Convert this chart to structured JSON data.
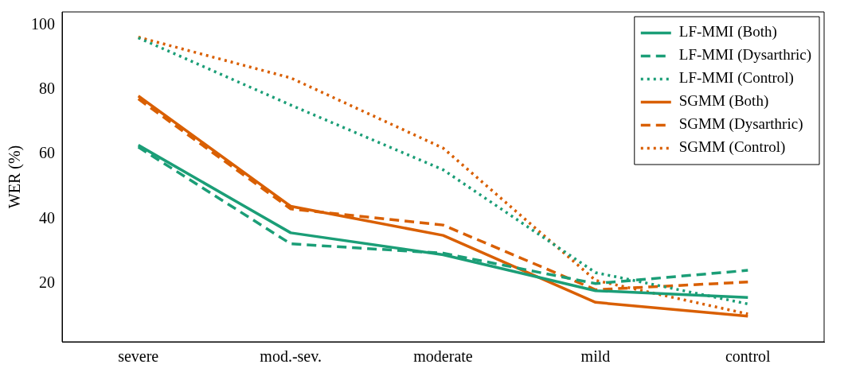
{
  "chart_data": {
    "type": "line",
    "ylabel": "WER (%)",
    "categories": [
      "severe",
      "mod.-sev.",
      "moderate",
      "mild",
      "control"
    ],
    "ylim": [
      2,
      104
    ],
    "yticks": [
      20,
      40,
      60,
      80,
      100
    ],
    "grid": false,
    "legend": "top right",
    "marker": "none",
    "series": [
      {
        "name": "LF-MMI (Both)",
        "color": "#1b9e77",
        "line_style": "solid",
        "values": [
          62.8,
          35.7,
          28.9,
          17.8,
          15.7
        ]
      },
      {
        "name": "LF-MMI (Dysarthric)",
        "color": "#1b9e77",
        "line_style": "dashed",
        "values": [
          62.2,
          32.3,
          29.4,
          20.0,
          24.1
        ]
      },
      {
        "name": "LF-MMI (Control)",
        "color": "#1b9e77",
        "line_style": "dotted",
        "values": [
          96.0,
          75.2,
          55.2,
          23.4,
          13.7
        ]
      },
      {
        "name": "SGMM (Both)",
        "color": "#d95f02",
        "line_style": "solid",
        "values": [
          78.0,
          43.9,
          34.9,
          14.2,
          9.9
        ]
      },
      {
        "name": "SGMM (Dysarthric)",
        "color": "#d95f02",
        "line_style": "dashed",
        "values": [
          77.1,
          43.1,
          38.1,
          18.1,
          20.5
        ]
      },
      {
        "name": "SGMM (Control)",
        "color": "#d95f02",
        "line_style": "dotted",
        "values": [
          96.2,
          83.6,
          61.9,
          21.0,
          10.6
        ]
      }
    ]
  }
}
